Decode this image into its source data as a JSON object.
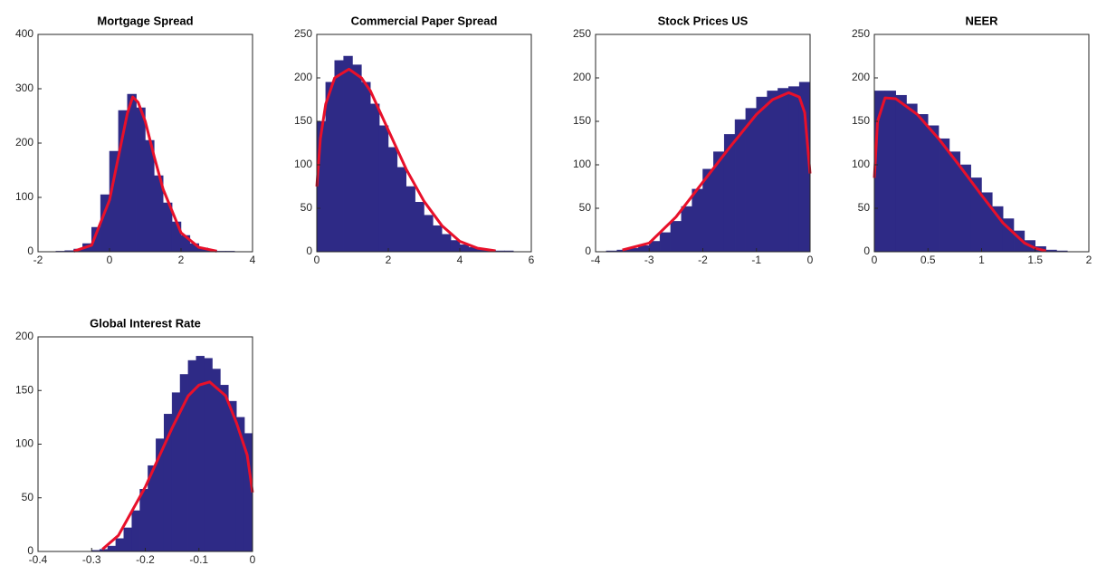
{
  "chart_data": [
    {
      "type": "histogram",
      "title": "Mortgage Spread",
      "color": "#2e2a86",
      "bins": [
        -1.5,
        -1.25,
        -1,
        -0.75,
        -0.5,
        -0.25,
        0,
        0.25,
        0.5,
        0.75,
        1,
        1.25,
        1.5,
        1.75,
        2,
        2.25,
        2.5,
        2.75,
        3,
        3.25,
        3.5
      ],
      "values": [
        1,
        2,
        5,
        15,
        45,
        105,
        185,
        260,
        290,
        265,
        205,
        140,
        90,
        55,
        30,
        15,
        7,
        3,
        1,
        1
      ],
      "line": {
        "color": "#e8102a",
        "x": [
          -1,
          -0.5,
          0,
          0.25,
          0.5,
          0.65,
          0.8,
          1,
          1.25,
          1.5,
          2,
          2.5,
          3
        ],
        "values": [
          1,
          12,
          95,
          175,
          255,
          285,
          275,
          240,
          175,
          115,
          35,
          8,
          1
        ]
      },
      "xlim": [
        -2,
        4
      ],
      "xticks": [
        -2,
        0,
        2,
        4
      ],
      "ylim": [
        0,
        400
      ],
      "yticks": [
        0,
        100,
        200,
        300,
        400
      ]
    },
    {
      "type": "histogram",
      "title": "Commercial Paper Spread",
      "color": "#2e2a86",
      "bins": [
        0,
        0.25,
        0.5,
        0.75,
        1,
        1.25,
        1.5,
        1.75,
        2,
        2.25,
        2.5,
        2.75,
        3,
        3.25,
        3.5,
        3.75,
        4,
        4.25,
        4.5,
        4.75,
        5,
        5.25,
        5.5,
        5.75,
        6
      ],
      "values": [
        150,
        195,
        220,
        225,
        215,
        195,
        170,
        145,
        120,
        97,
        75,
        57,
        42,
        30,
        20,
        13,
        8,
        5,
        3,
        2,
        1,
        1,
        0,
        0
      ],
      "line": {
        "color": "#e8102a",
        "x": [
          0,
          0.1,
          0.25,
          0.5,
          0.9,
          1.25,
          1.5,
          2,
          2.5,
          3,
          3.5,
          4,
          4.5,
          5
        ],
        "values": [
          75,
          130,
          170,
          200,
          210,
          200,
          185,
          140,
          95,
          58,
          30,
          12,
          4,
          1
        ]
      },
      "xlim": [
        0,
        6
      ],
      "xticks": [
        0,
        2,
        4,
        6
      ],
      "ylim": [
        0,
        250
      ],
      "yticks": [
        0,
        50,
        100,
        150,
        200,
        250
      ]
    },
    {
      "type": "histogram",
      "title": "Stock Prices US",
      "color": "#2e2a86",
      "bins": [
        -3.8,
        -3.6,
        -3.4,
        -3.2,
        -3,
        -2.8,
        -2.6,
        -2.4,
        -2.2,
        -2,
        -1.8,
        -1.6,
        -1.4,
        -1.2,
        -1,
        -0.8,
        -0.6,
        -0.4,
        -0.2,
        0
      ],
      "values": [
        1,
        2,
        4,
        7,
        12,
        22,
        35,
        52,
        72,
        95,
        115,
        135,
        152,
        165,
        178,
        185,
        188,
        190,
        195
      ],
      "line": {
        "color": "#e8102a",
        "x": [
          -3.5,
          -3,
          -2.5,
          -2,
          -1.5,
          -1,
          -0.7,
          -0.4,
          -0.2,
          -0.1,
          0
        ],
        "values": [
          2,
          10,
          40,
          80,
          120,
          158,
          175,
          183,
          178,
          160,
          90
        ]
      },
      "xlim": [
        -4,
        0
      ],
      "xticks": [
        -4,
        -3,
        -2,
        -1,
        0
      ],
      "ylim": [
        0,
        250
      ],
      "yticks": [
        0,
        50,
        100,
        150,
        200,
        250
      ]
    },
    {
      "type": "histogram",
      "title": "NEER",
      "color": "#2e2a86",
      "bins": [
        0,
        0.1,
        0.2,
        0.3,
        0.4,
        0.5,
        0.6,
        0.7,
        0.8,
        0.9,
        1,
        1.1,
        1.2,
        1.3,
        1.4,
        1.5,
        1.6,
        1.7,
        1.8
      ],
      "values": [
        185,
        185,
        180,
        170,
        158,
        145,
        130,
        115,
        100,
        85,
        68,
        52,
        38,
        24,
        13,
        6,
        2,
        1
      ],
      "line": {
        "color": "#e8102a",
        "x": [
          0,
          0.03,
          0.1,
          0.2,
          0.4,
          0.6,
          0.8,
          1,
          1.2,
          1.4,
          1.5,
          1.6
        ],
        "values": [
          85,
          150,
          177,
          176,
          158,
          130,
          98,
          65,
          33,
          10,
          4,
          1
        ]
      },
      "xlim": [
        0,
        2
      ],
      "xticks": [
        0,
        0.5,
        1,
        1.5,
        2
      ],
      "ylim": [
        0,
        250
      ],
      "yticks": [
        0,
        50,
        100,
        150,
        200,
        250
      ]
    },
    {
      "type": "histogram",
      "title": "Global Interest Rate",
      "color": "#2e2a86",
      "bins": [
        -0.3,
        -0.285,
        -0.27,
        -0.255,
        -0.24,
        -0.225,
        -0.21,
        -0.195,
        -0.18,
        -0.165,
        -0.15,
        -0.135,
        -0.12,
        -0.105,
        -0.09,
        -0.075,
        -0.06,
        -0.045,
        -0.03,
        -0.015,
        0
      ],
      "values": [
        1,
        2,
        5,
        12,
        22,
        38,
        58,
        80,
        105,
        128,
        148,
        165,
        178,
        182,
        180,
        170,
        155,
        140,
        125,
        110
      ],
      "line": {
        "color": "#e8102a",
        "x": [
          -0.28,
          -0.25,
          -0.2,
          -0.15,
          -0.12,
          -0.1,
          -0.08,
          -0.05,
          -0.03,
          -0.01,
          0
        ],
        "values": [
          2,
          15,
          60,
          115,
          145,
          155,
          158,
          145,
          120,
          90,
          55
        ]
      },
      "xlim": [
        -0.4,
        0
      ],
      "xticks": [
        -0.4,
        -0.3,
        -0.2,
        -0.1,
        0
      ],
      "ylim": [
        0,
        200
      ],
      "yticks": [
        0,
        50,
        100,
        150,
        200
      ]
    }
  ]
}
